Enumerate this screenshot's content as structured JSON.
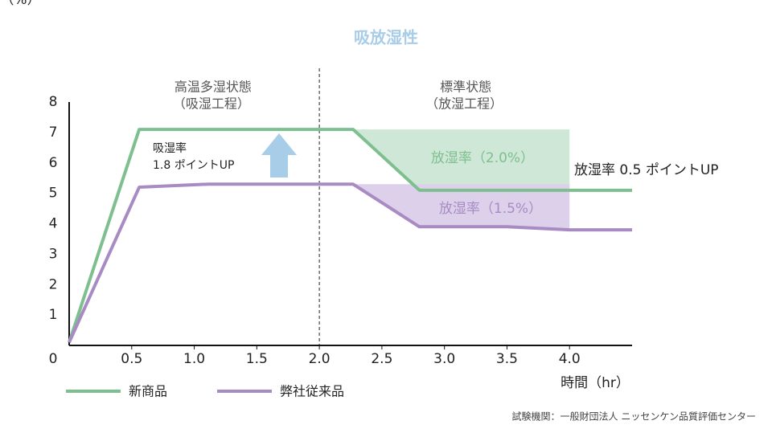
{
  "chart_data": {
    "type": "line",
    "title": "吸放湿性",
    "y_label": "水分率（%）",
    "x_label": "時間（hr）",
    "xlim": [
      0,
      4.5
    ],
    "ylim": [
      0,
      8
    ],
    "xticks": [
      {
        "value": 0.5,
        "label": "0.5"
      },
      {
        "value": 1,
        "label": "1.0"
      },
      {
        "value": 1.5,
        "label": "1.5"
      },
      {
        "value": 2,
        "label": "2.0"
      },
      {
        "value": 2.5,
        "label": "2.5"
      },
      {
        "value": 3,
        "label": "3.0"
      },
      {
        "value": 3.5,
        "label": "3.5"
      },
      {
        "value": 4,
        "label": "4.0"
      }
    ],
    "yticks": [
      0,
      1,
      2,
      3,
      4,
      5,
      6,
      7,
      8
    ],
    "divider_x": 2,
    "shade_until": 4,
    "series": [
      {
        "name": "新商品",
        "color": "#7dbf8e",
        "shade": "#cfe7d6",
        "x": [
          0,
          0.56,
          2.27,
          2.8,
          4.5
        ],
        "values": [
          0.1,
          7.1,
          7.1,
          5.1,
          5.1
        ]
      },
      {
        "name": "弊社従来品",
        "color": "#a98bc4",
        "shade": "#ddd0ea",
        "x": [
          0,
          0.56,
          1.11,
          2.27,
          2.8,
          3.5,
          4.0,
          4.5
        ],
        "values": [
          0.1,
          5.2,
          5.3,
          5.3,
          3.9,
          3.9,
          3.8,
          3.8
        ]
      }
    ],
    "phases": [
      [
        "高温多湿状態",
        "（吸湿工程）"
      ],
      [
        "標準状態",
        "（放湿工程）"
      ]
    ],
    "annotations": {
      "absorb": [
        "吸湿率",
        "1.8 ポイントUP"
      ],
      "release_new": "放湿率（2.0%）",
      "release_old": "放湿率（1.5%）",
      "release_diff": "放湿率 0.5 ポイントUP"
    },
    "source": "試験機関：一般財団法人 ニッセンケン品質評価センター"
  }
}
